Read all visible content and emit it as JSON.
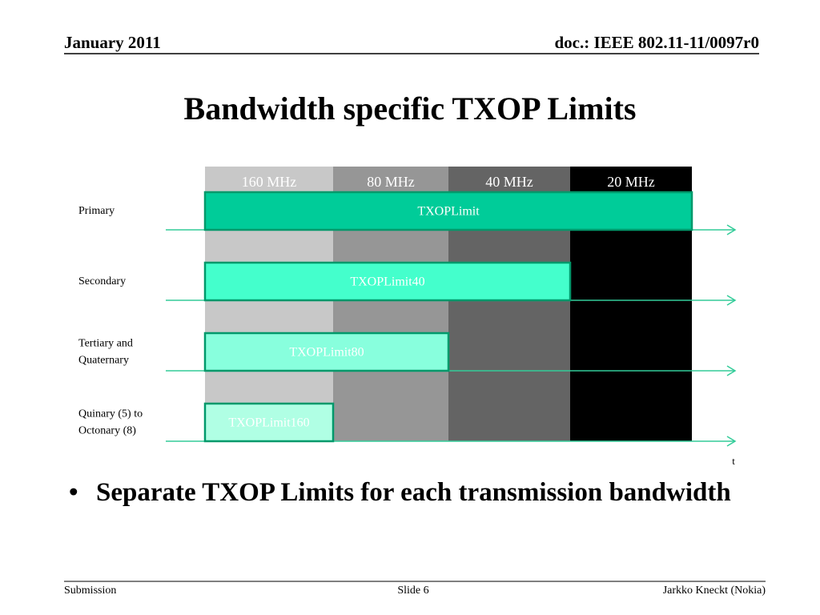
{
  "header": {
    "date": "January 2011",
    "doc": "doc.: IEEE 802.11-11/0097r0"
  },
  "title": "Bandwidth specific TXOP Limits",
  "diagram": {
    "columns": [
      "160 MHz",
      "80 MHz",
      "40 MHz",
      "20 MHz"
    ],
    "rows": [
      {
        "lines": [
          "Primary"
        ],
        "bar": "TXOPLimit"
      },
      {
        "lines": [
          "Secondary"
        ],
        "bar": "TXOPLimit40"
      },
      {
        "lines": [
          "Tertiary and",
          "Quaternary"
        ],
        "bar": "TXOPLimit80"
      },
      {
        "lines": [
          "Quinary (5) to",
          "Octonary (8)"
        ],
        "bar": "TXOPLimit160"
      }
    ],
    "time_label": "t"
  },
  "bullets": [
    "Separate TXOP Limits for each transmission bandwidth"
  ],
  "footer": {
    "left": "Submission",
    "center": "Slide 6",
    "right": "Jarkko Kneckt (Nokia)"
  }
}
